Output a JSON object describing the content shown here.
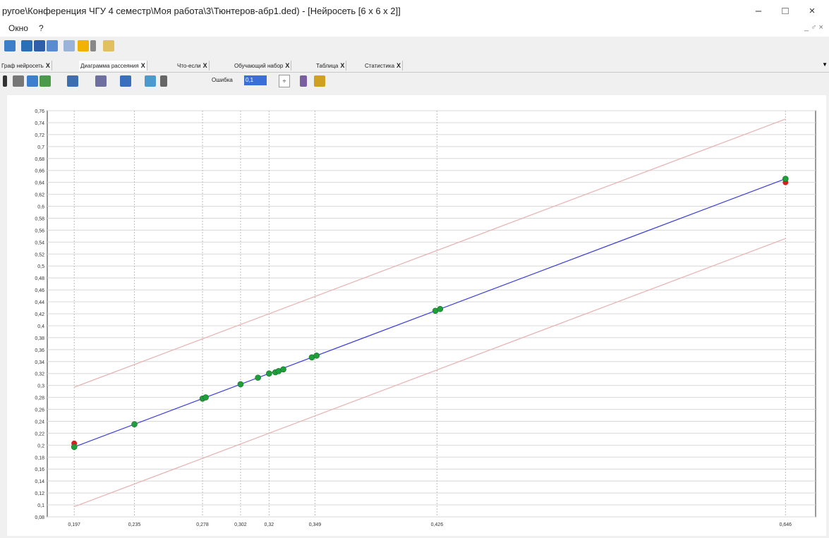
{
  "window": {
    "title": "ругое\\Конференция ЧГУ 4 семестр\\Моя работа\\3\\Тюнтеров-абр1.ded) - [Нейросеть [6 x 6 x 2]]",
    "minimize": "–",
    "maximize": "□",
    "close": "×"
  },
  "menu": {
    "items": [
      "Окно",
      "?"
    ],
    "mdi_controls": "_ ♂ ×"
  },
  "tabs": [
    {
      "label": "Граф нейросеть",
      "active": false
    },
    {
      "label": "Диаграмма рассеяния",
      "active": true
    },
    {
      "label": "Что-если",
      "active": false
    },
    {
      "label": "Обучающий набор",
      "active": false
    },
    {
      "label": "Таблица",
      "active": false
    },
    {
      "label": "Статистика",
      "active": false
    }
  ],
  "tab_close": "X",
  "toolbar2": {
    "error_label": "Ошибка",
    "error_value": "0,1"
  },
  "chart_data": {
    "type": "scatter",
    "title": "",
    "xlabel": "",
    "ylabel": "",
    "xlim": [
      0.18,
      0.665
    ],
    "ylim": [
      0.08,
      0.76
    ],
    "x_ticks": [
      0.197,
      0.235,
      0.278,
      0.302,
      0.32,
      0.349,
      0.426,
      0.646
    ],
    "x_tick_labels": [
      "0,197",
      "0,235",
      "0,278",
      "0,302",
      "0,32",
      "0,349",
      "0,426",
      "0,646"
    ],
    "y_ticks": [
      0.08,
      0.1,
      0.12,
      0.14,
      0.16,
      0.18,
      0.2,
      0.22,
      0.24,
      0.26,
      0.28,
      0.3,
      0.32,
      0.34,
      0.36,
      0.38,
      0.4,
      0.42,
      0.44,
      0.46,
      0.48,
      0.5,
      0.52,
      0.54,
      0.56,
      0.58,
      0.6,
      0.62,
      0.64,
      0.66,
      0.68,
      0.7,
      0.72,
      0.74,
      0.76
    ],
    "y_tick_labels": [
      "0,08",
      "0,1",
      "0,12",
      "0,14",
      "0,16",
      "0,18",
      "0,2",
      "0,22",
      "0,24",
      "0,26",
      "0,28",
      "0,3",
      "0,32",
      "0,34",
      "0,36",
      "0,38",
      "0,4",
      "0,42",
      "0,44",
      "0,46",
      "0,48",
      "0,5",
      "0,52",
      "0,54",
      "0,56",
      "0,58",
      "0,6",
      "0,62",
      "0,64",
      "0,66",
      "0,68",
      "0,7",
      "0,72",
      "0,74",
      "0,76"
    ],
    "grid": true,
    "fit_line": {
      "x": [
        0.197,
        0.646
      ],
      "y": [
        0.197,
        0.646
      ],
      "color": "#3a3ae0"
    },
    "bounds_upper": {
      "x": [
        0.197,
        0.646
      ],
      "y": [
        0.297,
        0.746
      ],
      "color": "#e8b0b0"
    },
    "bounds_lower": {
      "x": [
        0.197,
        0.646
      ],
      "y": [
        0.097,
        0.546
      ],
      "color": "#e8b0b0"
    },
    "series": [
      {
        "color": "#1f9e3c",
        "x": [
          0.197,
          0.235,
          0.278,
          0.28,
          0.302,
          0.313,
          0.32,
          0.324,
          0.326,
          0.329,
          0.347,
          0.35,
          0.425,
          0.428,
          0.646
        ],
        "y": [
          0.197,
          0.235,
          0.278,
          0.28,
          0.302,
          0.313,
          0.32,
          0.322,
          0.324,
          0.327,
          0.347,
          0.35,
          0.425,
          0.428,
          0.646
        ]
      },
      {
        "color": "#d42020",
        "x": [
          0.197,
          0.646
        ],
        "y": [
          0.203,
          0.64
        ]
      }
    ]
  }
}
